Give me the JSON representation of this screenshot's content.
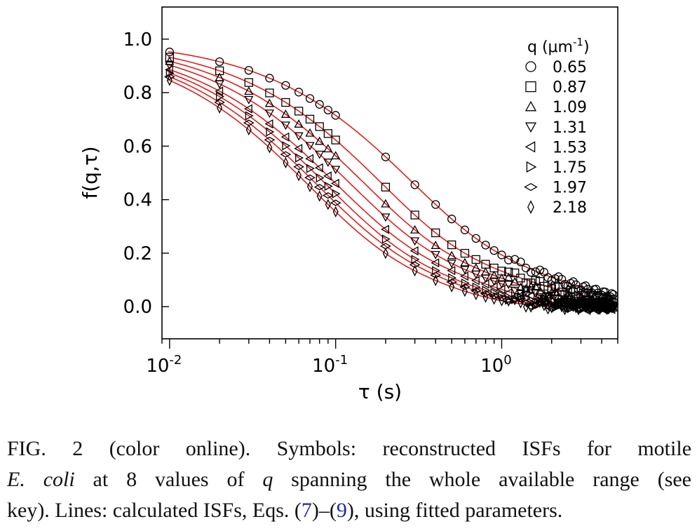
{
  "chart_data": {
    "type": "scatter",
    "xscale": "log",
    "xlim": [
      0.009,
      5.0
    ],
    "ylim": [
      -0.12,
      1.12
    ],
    "xlabel": "τ (s)",
    "ylabel": "f(q,τ)",
    "ytick_labels": [
      "0.0",
      "0.2",
      "0.4",
      "0.6",
      "0.8",
      "1.0"
    ],
    "yticks": [
      0,
      0.2,
      0.4,
      0.6,
      0.8,
      1.0
    ],
    "xtick_labels": [
      {
        "base": "10",
        "exp": "-2",
        "value": 0.01
      },
      {
        "base": "10",
        "exp": "-1",
        "value": 0.1
      },
      {
        "base": "10",
        "exp": "0",
        "value": 1
      }
    ],
    "legend": {
      "title_prefix": "q (",
      "title_unit": "μm",
      "title_exp": "-1",
      "title_suffix": ")",
      "placement": "top-right"
    },
    "fit_line_color": "#e01f1f",
    "marker_color": "#000000",
    "series": [
      {
        "name": "0.65",
        "marker": "circle",
        "tau_c": 0.25,
        "beta": 0.85,
        "plateau": 0.27,
        "tau_p": 2.2,
        "tail": 0.9
      },
      {
        "name": "0.87",
        "marker": "square",
        "tau_c": 0.17,
        "beta": 0.85,
        "plateau": 0.24,
        "tau_p": 1.6,
        "tail": 0.9
      },
      {
        "name": "1.09",
        "marker": "triangle-up",
        "tau_c": 0.13,
        "beta": 0.85,
        "plateau": 0.26,
        "tau_p": 1.1,
        "tail": 0.9
      },
      {
        "name": "1.31",
        "marker": "triangle-down",
        "tau_c": 0.105,
        "beta": 0.85,
        "plateau": 0.27,
        "tau_p": 0.85,
        "tail": 0.9
      },
      {
        "name": "1.53",
        "marker": "triangle-left",
        "tau_c": 0.085,
        "beta": 0.85,
        "plateau": 0.28,
        "tau_p": 0.65,
        "tail": 0.9
      },
      {
        "name": "1.75",
        "marker": "triangle-right",
        "tau_c": 0.075,
        "beta": 0.85,
        "plateau": 0.28,
        "tau_p": 0.5,
        "tail": 0.9
      },
      {
        "name": "1.97",
        "marker": "diamond-wide",
        "tau_c": 0.065,
        "beta": 0.85,
        "plateau": 0.29,
        "tau_p": 0.42,
        "tail": 0.9
      },
      {
        "name": "2.18",
        "marker": "diamond-tall",
        "tau_c": 0.058,
        "beta": 0.85,
        "plateau": 0.29,
        "tau_p": 0.35,
        "tail": 0.9
      }
    ]
  },
  "caption": {
    "fig": "FIG. 2 (color online).",
    "line1_rest": "Symbols: reconstructed ISFs for motile",
    "line2_species": "E. coli",
    "line2_mid": " at 8 values of ",
    "line2_q": "q",
    "line2_rest": " spanning the whole available range (see",
    "line3_start": "key). Lines: calculated ISFs, Eqs. (",
    "line3_ref1": "7",
    "line3_dash": ")–(",
    "line3_ref2": "9",
    "line3_end": "), using fitted parameters."
  }
}
